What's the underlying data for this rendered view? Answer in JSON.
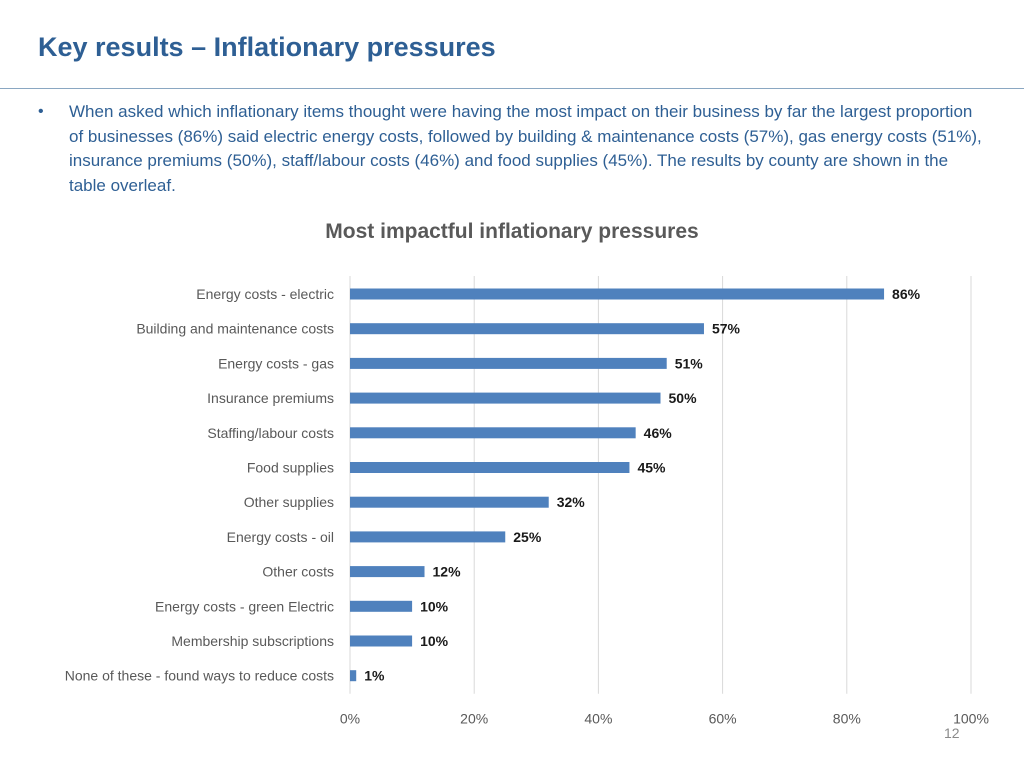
{
  "slide": {
    "title": "Key results – Inflationary pressures",
    "bullet_marker": "•",
    "bullet_text": "When asked which inflationary items thought were having the most impact on their business by far the largest proportion of businesses (86%) said electric energy costs, followed by building & maintenance costs (57%), gas energy costs (51%), insurance premiums (50%), staff/labour costs (46%) and food supplies (45%).  The results by county are shown in the table overleaf.",
    "page_number": "12"
  },
  "colors": {
    "title": "#2e5f94",
    "body_text": "#2e5f94",
    "bar": "#4f81bd",
    "gridline": "#d9d9d9",
    "axis_text": "#595959"
  },
  "chart_data": {
    "type": "bar",
    "orientation": "horizontal",
    "title": "Most impactful inflationary pressures",
    "categories": [
      "Energy costs - electric",
      "Building and maintenance costs",
      "Energy costs - gas",
      "Insurance premiums",
      "Staffing/labour costs",
      "Food supplies",
      "Other supplies",
      "Energy costs - oil",
      "Other costs",
      "Energy costs - green Electric",
      "Membership subscriptions",
      "None of these - found ways to reduce costs"
    ],
    "values": [
      86,
      57,
      51,
      50,
      46,
      45,
      32,
      25,
      12,
      10,
      10,
      1
    ],
    "data_labels": [
      "86%",
      "57%",
      "51%",
      "50%",
      "46%",
      "45%",
      "32%",
      "25%",
      "12%",
      "10%",
      "10%",
      "1%"
    ],
    "xlim": [
      0,
      100
    ],
    "xticks": [
      0,
      20,
      40,
      60,
      80,
      100
    ],
    "xtick_labels": [
      "0%",
      "20%",
      "40%",
      "60%",
      "80%",
      "100%"
    ],
    "xlabel": "",
    "ylabel": "",
    "grid": "vertical",
    "legend": "none"
  }
}
